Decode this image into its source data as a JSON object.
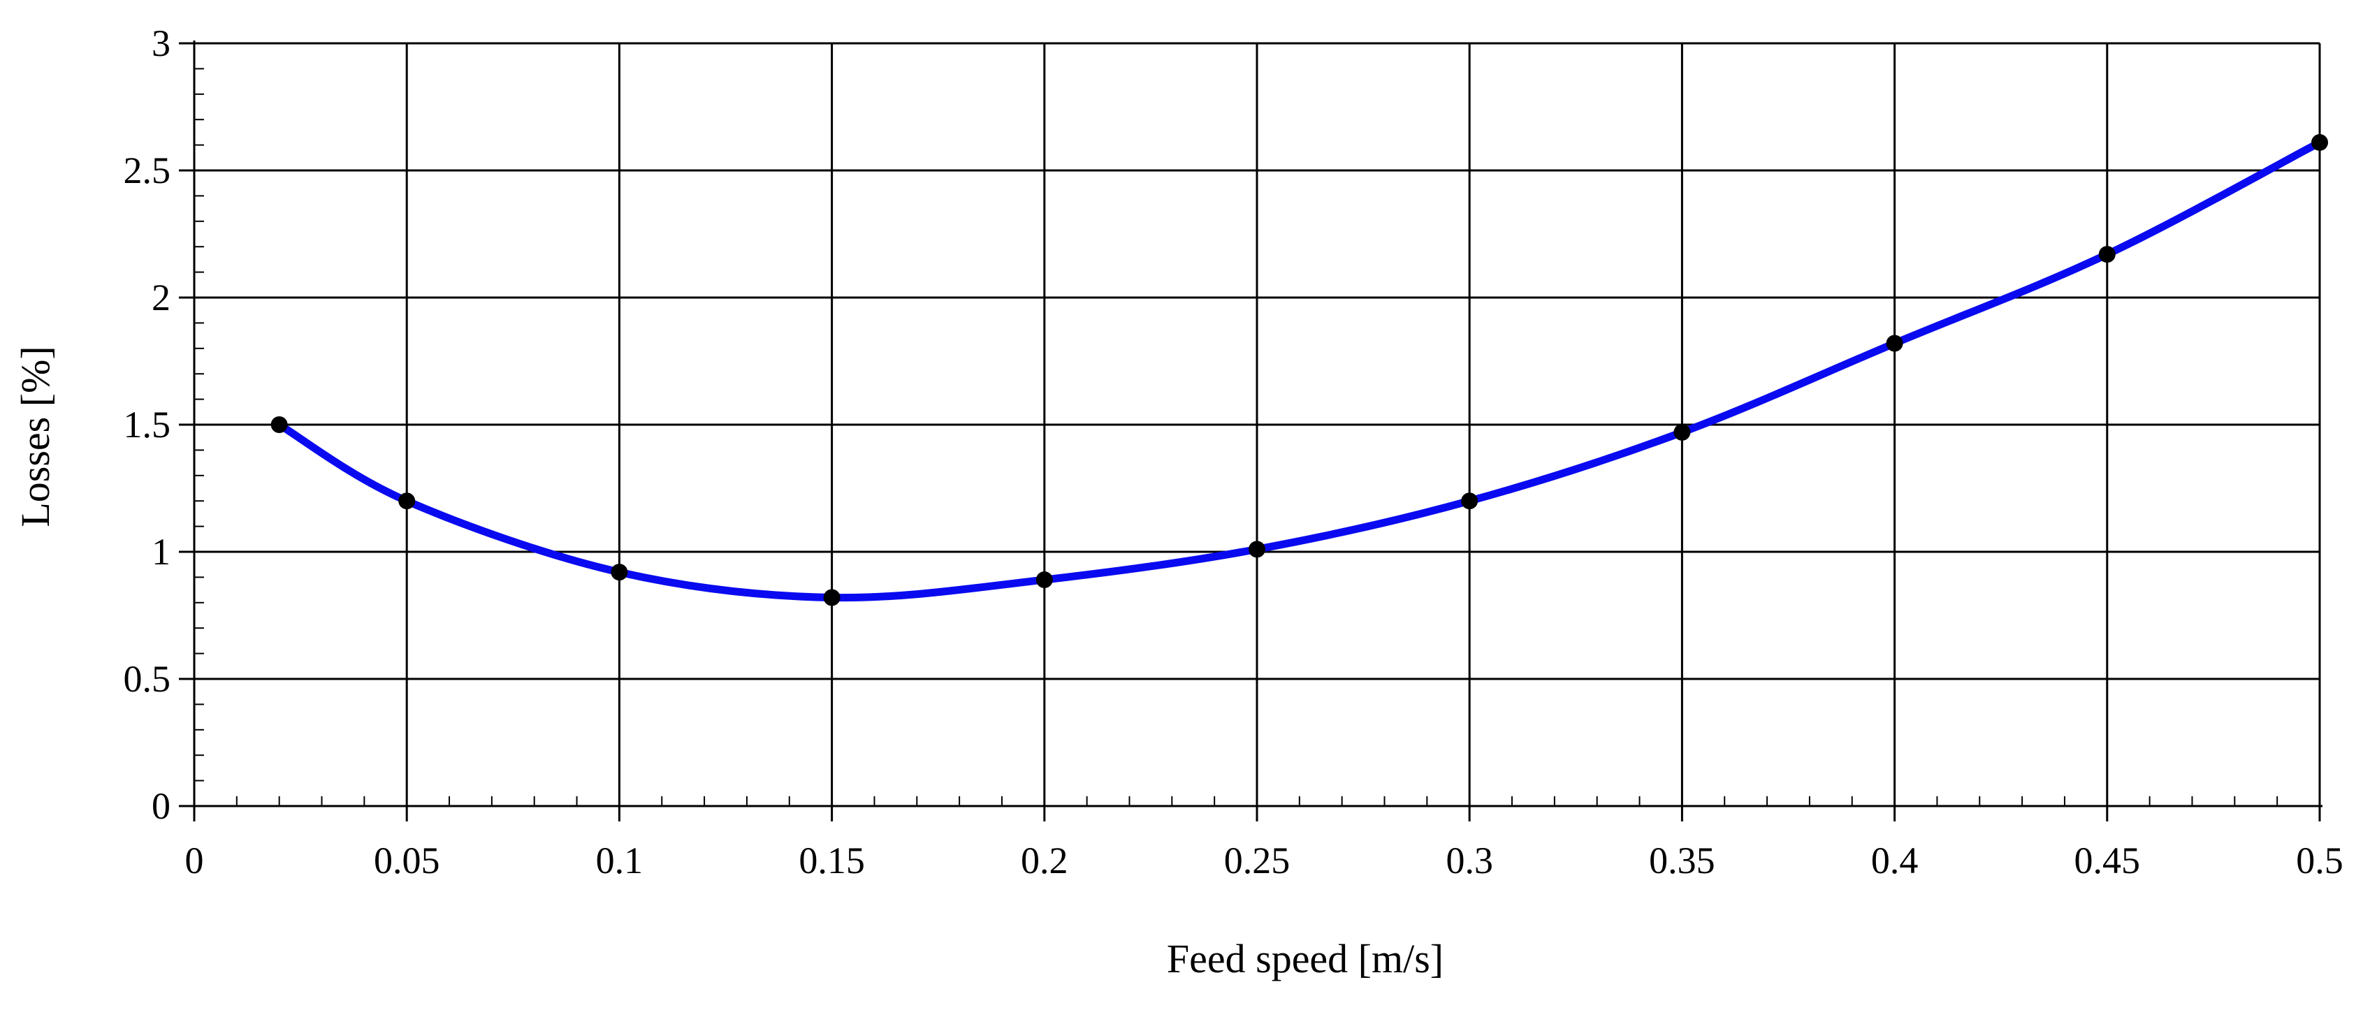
{
  "chart_data": {
    "type": "line",
    "title": "",
    "xlabel": "Feed speed [m/s]",
    "ylabel": "Losses [%]",
    "xlim": [
      0,
      0.5
    ],
    "ylim": [
      0,
      3
    ],
    "grid": true,
    "xticks": [
      0,
      0.05,
      0.1,
      0.15,
      0.2,
      0.25,
      0.3,
      0.35,
      0.4,
      0.45,
      0.5
    ],
    "xtick_labels": [
      "0",
      "0.05",
      "0.1",
      "0.15",
      "0.2",
      "0.25",
      "0.3",
      "0.35",
      "0.4",
      "0.45",
      "0.5"
    ],
    "yticks": [
      0,
      0.5,
      1,
      1.5,
      2,
      2.5,
      3
    ],
    "ytick_labels": [
      "0",
      "0.5",
      "1",
      "1.5",
      "2",
      "2.5",
      "3"
    ],
    "series": [
      {
        "name": "Losses",
        "color": "#0a0af0",
        "marker_color": "#000000",
        "points": [
          {
            "x": 0.02,
            "y": 1.5
          },
          {
            "x": 0.05,
            "y": 1.2
          },
          {
            "x": 0.1,
            "y": 0.92
          },
          {
            "x": 0.15,
            "y": 0.82
          },
          {
            "x": 0.2,
            "y": 0.89
          },
          {
            "x": 0.25,
            "y": 1.01
          },
          {
            "x": 0.3,
            "y": 1.2
          },
          {
            "x": 0.35,
            "y": 1.47
          },
          {
            "x": 0.4,
            "y": 1.82
          },
          {
            "x": 0.45,
            "y": 2.17
          },
          {
            "x": 0.5,
            "y": 2.61
          }
        ]
      }
    ]
  }
}
